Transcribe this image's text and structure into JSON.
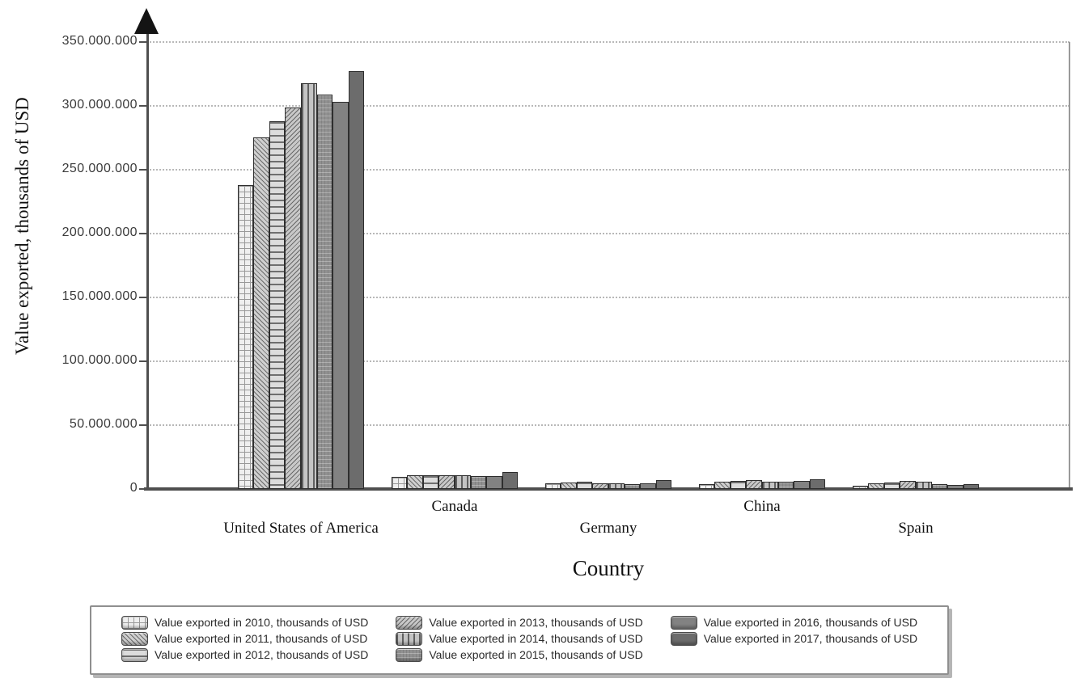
{
  "chart_data": {
    "type": "bar",
    "title": "",
    "xlabel": "Country",
    "ylabel": "Value exported, thousands of USD",
    "categories": [
      "United States of America",
      "Canada",
      "Germany",
      "China",
      "Spain"
    ],
    "series": [
      {
        "name": "Value exported in 2010, thousands of USD",
        "pattern": "grid",
        "values": [
          238000000,
          9500000,
          4500000,
          3500000,
          2500000
        ]
      },
      {
        "name": "Value exported in 2011, thousands of USD",
        "pattern": "diagonal-down",
        "values": [
          275000000,
          10500000,
          5000000,
          6000000,
          4500000
        ]
      },
      {
        "name": "Value exported in 2012, thousands of USD",
        "pattern": "horizontal",
        "values": [
          288000000,
          10500000,
          5500000,
          6500000,
          5000000
        ]
      },
      {
        "name": "Value exported in 2013, thousands of USD",
        "pattern": "diagonal-up",
        "values": [
          299000000,
          10500000,
          4500000,
          7000000,
          6500000
        ]
      },
      {
        "name": "Value exported in 2014, thousands of USD",
        "pattern": "vertical",
        "values": [
          318000000,
          10500000,
          4500000,
          5500000,
          5500000
        ]
      },
      {
        "name": "Value exported in 2015, thousands of USD",
        "pattern": "textured-gray",
        "values": [
          309000000,
          10000000,
          4000000,
          5500000,
          3500000
        ]
      },
      {
        "name": "Value exported in 2016, thousands of USD",
        "pattern": "solid-gray",
        "values": [
          303000000,
          10000000,
          4500000,
          6500000,
          3000000
        ]
      },
      {
        "name": "Value exported in 2017, thousands of USD",
        "pattern": "solid-dark-gray",
        "values": [
          327000000,
          13000000,
          7000000,
          7500000,
          3500000
        ]
      }
    ],
    "ylim": [
      0,
      350000000
    ],
    "yticks": [
      {
        "value": 0,
        "label": "0"
      },
      {
        "value": 50000000,
        "label": "50.000.000"
      },
      {
        "value": 100000000,
        "label": "100.000.000"
      },
      {
        "value": 150000000,
        "label": "150.000.000"
      },
      {
        "value": 200000000,
        "label": "200.000.000"
      },
      {
        "value": 250000000,
        "label": "250.000.000"
      },
      {
        "value": 300000000,
        "label": "300.000.000"
      },
      {
        "value": 350000000,
        "label": "350.000.000"
      }
    ],
    "grid": "horizontal-dotted",
    "legend_position": "bottom"
  },
  "colors": {
    "axis": "#4f4f4f",
    "gridline": "#b8b8b8",
    "text": "#111111",
    "bar_border": "#2e2e2e",
    "legend_border": "#8f8f8f",
    "bar_grays": [
      "#efefef",
      "#cfcfcf",
      "#dcdcdc",
      "#c8c8c8",
      "#c4c4c4",
      "#919191",
      "#828282",
      "#6c6c6c"
    ]
  }
}
